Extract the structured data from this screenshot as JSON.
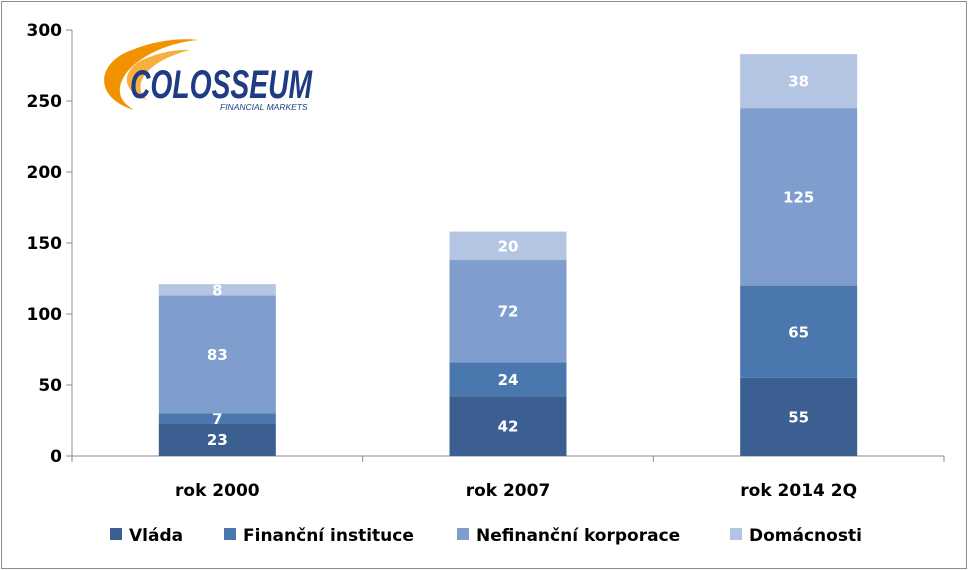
{
  "logo": {
    "wordmark": "COLOSSEUM",
    "tagline": "FINANCIAL MARKETS",
    "color_primary": "#1f3b84",
    "color_accent": "#f39200"
  },
  "chart_data": {
    "type": "bar",
    "stacked": true,
    "title": "",
    "xlabel": "",
    "ylabel": "",
    "categories": [
      "rok 2000",
      "rok 2007",
      "rok 2014 2Q"
    ],
    "ylim": [
      0,
      300
    ],
    "yticks": [
      0,
      50,
      100,
      150,
      200,
      250,
      300
    ],
    "series": [
      {
        "name": "Vláda",
        "values": [
          23,
          42,
          55
        ],
        "color": "#3c5f91"
      },
      {
        "name": "Finanční instituce",
        "values": [
          7,
          24,
          65
        ],
        "color": "#4a77ae"
      },
      {
        "name": "Nefinanční korporace",
        "values": [
          83,
          72,
          125
        ],
        "color": "#7f9ecd"
      },
      {
        "name": "Domácnosti",
        "values": [
          8,
          20,
          38
        ],
        "color": "#b4c5e3"
      }
    ],
    "legend": "bottom",
    "grid": false
  }
}
